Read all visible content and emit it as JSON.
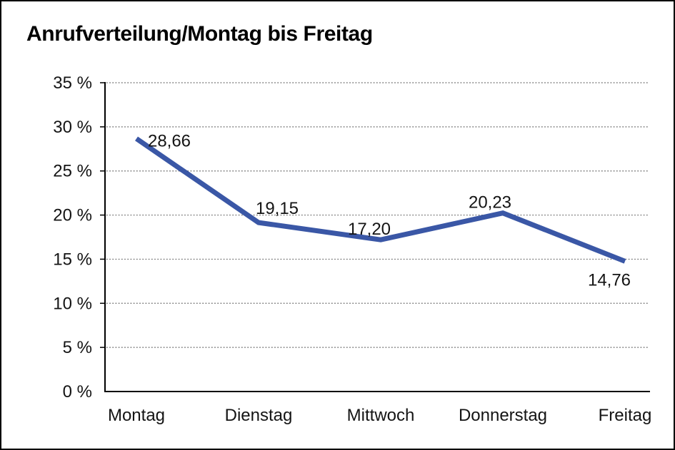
{
  "title": "Anrufverteilung/Montag bis Freitag",
  "chart_data": {
    "type": "line",
    "title": "Anrufverteilung/Montag bis Freitag",
    "categories": [
      "Montag",
      "Dienstag",
      "Mittwoch",
      "Donnerstag",
      "Freitag"
    ],
    "values": [
      28.66,
      19.15,
      17.2,
      20.23,
      14.76
    ],
    "data_labels": [
      "28,66",
      "19,15",
      "17,20",
      "20,23",
      "14,76"
    ],
    "ylim": [
      0,
      35
    ],
    "ytick_step": 5,
    "ytick_labels": [
      "0 %",
      "5 %",
      "10 %",
      "15 %",
      "20 %",
      "25 %",
      "30 %",
      "35 %"
    ],
    "xlabel": "",
    "ylabel": "",
    "grid": "horizontal-dotted",
    "legend": "none",
    "line_color": "#3A57A6",
    "axis_color": "#000000",
    "grid_color": "#5A5A5A",
    "text_color": "#141414",
    "background_color": "#FFFFFF"
  }
}
